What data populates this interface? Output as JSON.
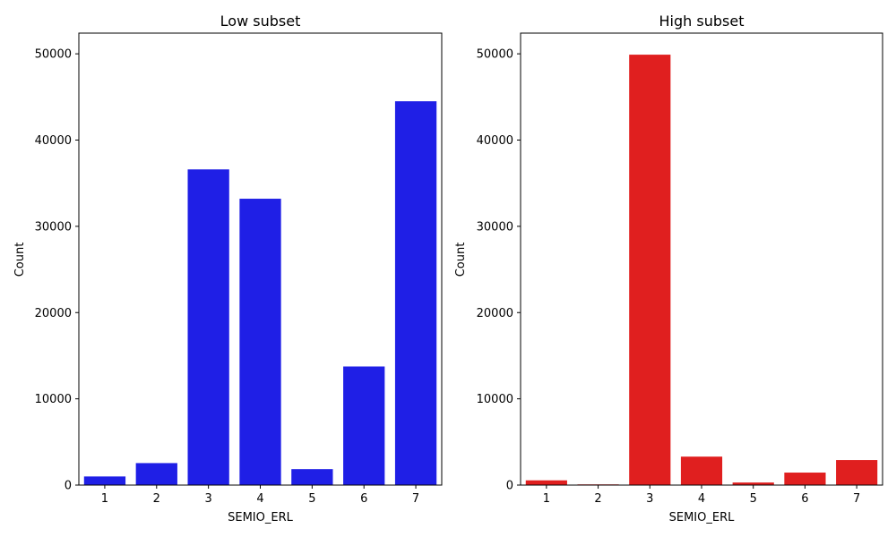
{
  "chart_data": [
    {
      "type": "bar",
      "title": "Low subset",
      "xlabel": "SEMIO_ERL",
      "ylabel": "Count",
      "categories": [
        "1",
        "2",
        "3",
        "4",
        "5",
        "6",
        "7"
      ],
      "values": [
        1000,
        2550,
        36600,
        33200,
        1850,
        13750,
        44500
      ],
      "ylim": [
        0,
        52400
      ],
      "yticks": [
        0,
        10000,
        20000,
        30000,
        40000,
        50000
      ],
      "color": "#1f1fe6"
    },
    {
      "type": "bar",
      "title": "High subset",
      "xlabel": "SEMIO_ERL",
      "ylabel": "Count",
      "categories": [
        "1",
        "2",
        "3",
        "4",
        "5",
        "6",
        "7"
      ],
      "values": [
        550,
        80,
        49900,
        3300,
        300,
        1450,
        2900
      ],
      "ylim": [
        0,
        52400
      ],
      "yticks": [
        0,
        10000,
        20000,
        30000,
        40000,
        50000
      ],
      "color": "#e01f1f"
    }
  ]
}
